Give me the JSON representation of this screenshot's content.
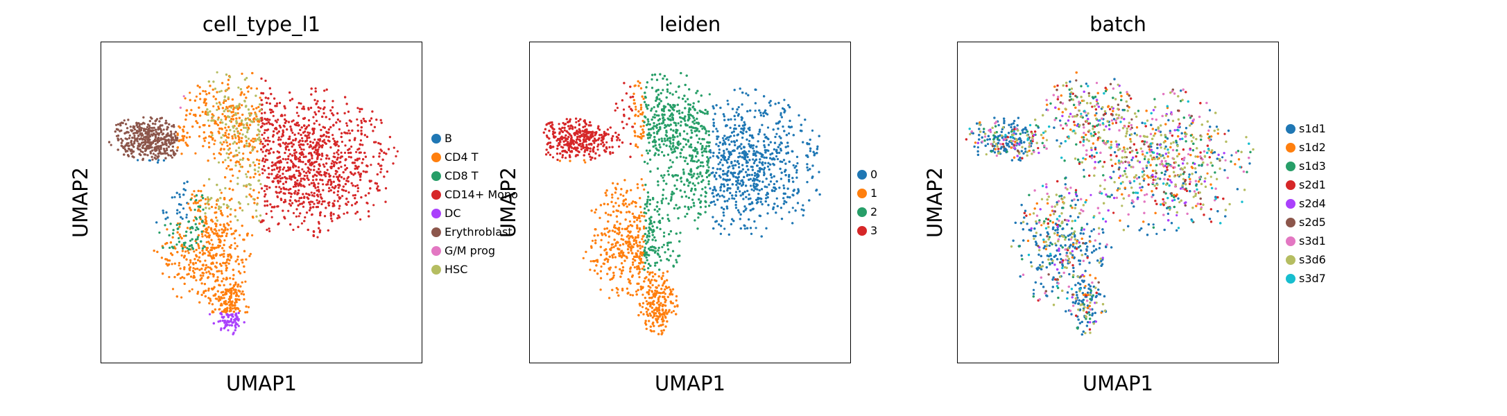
{
  "chart_data": [
    {
      "type": "scatter",
      "title": "cell_type_l1",
      "xlabel": "UMAP1",
      "ylabel": "UMAP2",
      "grid": false,
      "legend_position": "right",
      "categories": [
        {
          "name": "B",
          "color": "#1f77b4"
        },
        {
          "name": "CD4 T",
          "color": "#ff7f0e"
        },
        {
          "name": "CD8 T",
          "color": "#279e68"
        },
        {
          "name": "CD14+ Mono",
          "color": "#d62728"
        },
        {
          "name": "DC",
          "color": "#aa40fc"
        },
        {
          "name": "Erythroblast",
          "color": "#8c564b"
        },
        {
          "name": "G/M prog",
          "color": "#e377c2"
        },
        {
          "name": "HSC",
          "color": "#b5bd61"
        }
      ]
    },
    {
      "type": "scatter",
      "title": "leiden",
      "xlabel": "UMAP1",
      "ylabel": "UMAP2",
      "grid": false,
      "legend_position": "right",
      "categories": [
        {
          "name": "0",
          "color": "#1f77b4"
        },
        {
          "name": "1",
          "color": "#ff7f0e"
        },
        {
          "name": "2",
          "color": "#279e68"
        },
        {
          "name": "3",
          "color": "#d62728"
        }
      ]
    },
    {
      "type": "scatter",
      "title": "batch",
      "xlabel": "UMAP1",
      "ylabel": "UMAP2",
      "grid": false,
      "legend_position": "right",
      "categories": [
        {
          "name": "s1d1",
          "color": "#1f77b4"
        },
        {
          "name": "s1d2",
          "color": "#ff7f0e"
        },
        {
          "name": "s1d3",
          "color": "#279e68"
        },
        {
          "name": "s2d1",
          "color": "#d62728"
        },
        {
          "name": "s2d4",
          "color": "#aa40fc"
        },
        {
          "name": "s2d5",
          "color": "#8c564b"
        },
        {
          "name": "s3d1",
          "color": "#e377c2"
        },
        {
          "name": "s3d6",
          "color": "#b5bd61"
        },
        {
          "name": "s3d7",
          "color": "#17becf"
        }
      ]
    }
  ]
}
